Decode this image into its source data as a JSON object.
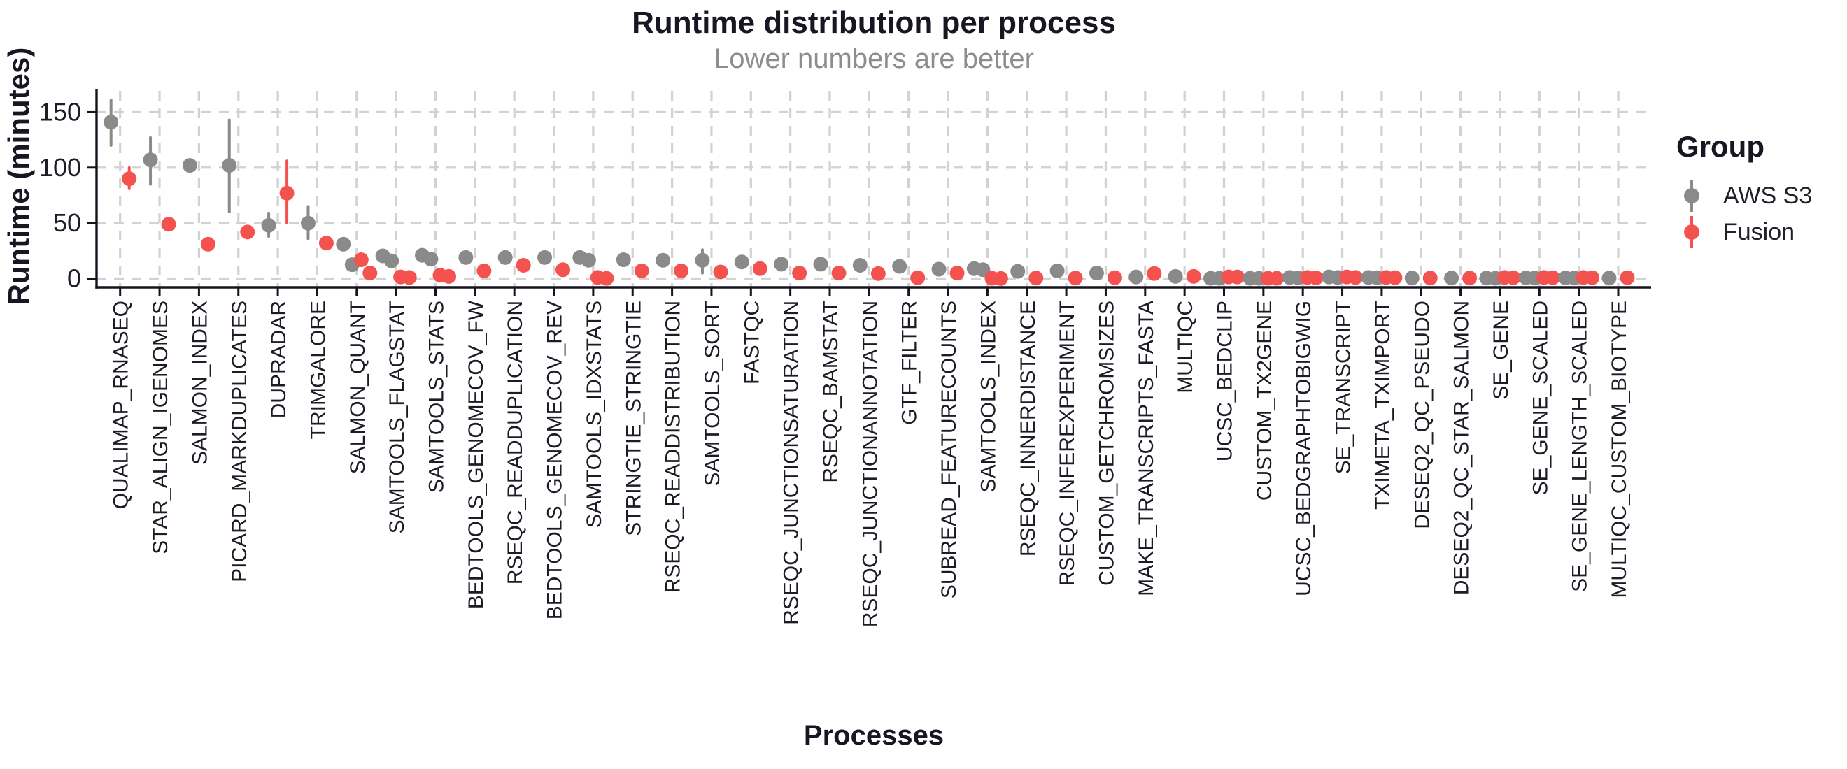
{
  "title": "Runtime distribution per process",
  "subtitle": "Lower numbers are better",
  "x_axis_label": "Processes",
  "y_axis_label": "Runtime (minutes)",
  "legend": {
    "title": "Group",
    "items": [
      {
        "label": "AWS S3",
        "color": "#8A8A8A"
      },
      {
        "label": "Fusion",
        "color": "#F4524F"
      }
    ]
  },
  "chart_data": {
    "type": "scatter",
    "subtype": "dodged pointrange, discrete x",
    "title": "Runtime distribution per process",
    "subtitle": "Lower numbers are better",
    "xlabel": "Processes",
    "ylabel": "Runtime (minutes)",
    "y_ticks": [
      0,
      50,
      100,
      150
    ],
    "ylim": [
      -8,
      170
    ],
    "grid": "dashed both axes",
    "legend_position": "right",
    "colors": {
      "s3": "#8A8A8A",
      "fusion": "#F4524F"
    },
    "series_names": [
      "AWS S3",
      "Fusion"
    ],
    "processes": [
      {
        "name": "QUALIMAP_RNASEQ",
        "s3": [
          141
        ],
        "s3_range": [
          120,
          161
        ],
        "fusion": [
          90
        ],
        "fusion_range": [
          81,
          100
        ]
      },
      {
        "name": "STAR_ALIGN_IGENOMES",
        "s3": [
          107
        ],
        "s3_range": [
          85,
          127
        ],
        "fusion": [
          49
        ],
        "fusion_range": null
      },
      {
        "name": "SALMON_INDEX",
        "s3": [
          102
        ],
        "s3_range": null,
        "fusion": [
          31
        ],
        "fusion_range": null
      },
      {
        "name": "PICARD_MARKDUPLICATES",
        "s3": [
          102
        ],
        "s3_range": [
          60,
          143
        ],
        "fusion": [
          42
        ],
        "fusion_range": null
      },
      {
        "name": "DUPRADAR",
        "s3": [
          48
        ],
        "s3_range": [
          38,
          59
        ],
        "fusion": [
          77
        ],
        "fusion_range": [
          50,
          106
        ]
      },
      {
        "name": "TRIMGALORE",
        "s3": [
          50
        ],
        "s3_range": [
          36,
          65
        ],
        "fusion": [
          32
        ],
        "fusion_range": null
      },
      {
        "name": "SALMON_QUANT",
        "s3": [
          31,
          12.5
        ],
        "s3_range": null,
        "fusion": [
          17,
          5
        ],
        "fusion_range": null
      },
      {
        "name": "SAMTOOLS_FLAGSTAT",
        "s3": [
          20.5,
          16
        ],
        "s3_range": null,
        "fusion": [
          1.5,
          1
        ],
        "fusion_range": null
      },
      {
        "name": "SAMTOOLS_STATS",
        "s3": [
          21,
          17.5
        ],
        "s3_range": null,
        "fusion": [
          3,
          2
        ],
        "fusion_range": null
      },
      {
        "name": "BEDTOOLS_GENOMECOV_FW",
        "s3": [
          19
        ],
        "s3_range": null,
        "fusion": [
          7
        ],
        "fusion_range": null
      },
      {
        "name": "RSEQC_READDUPLICATION",
        "s3": [
          19
        ],
        "s3_range": null,
        "fusion": [
          12
        ],
        "fusion_range": null
      },
      {
        "name": "BEDTOOLS_GENOMECOV_REV",
        "s3": [
          19
        ],
        "s3_range": null,
        "fusion": [
          8
        ],
        "fusion_range": null
      },
      {
        "name": "SAMTOOLS_IDXSTATS",
        "s3": [
          19,
          16.5
        ],
        "s3_range": null,
        "fusion": [
          1,
          0.2
        ],
        "fusion_range": null
      },
      {
        "name": "STRINGTIE_STRINGTIE",
        "s3": [
          17
        ],
        "s3_range": null,
        "fusion": [
          7
        ],
        "fusion_range": null
      },
      {
        "name": "RSEQC_READDISTRIBUTION",
        "s3": [
          16.5
        ],
        "s3_range": null,
        "fusion": [
          7
        ],
        "fusion_range": null
      },
      {
        "name": "SAMTOOLS_SORT",
        "s3": [
          16.5
        ],
        "s3_range": [
          5,
          26
        ],
        "fusion": [
          6
        ],
        "fusion_range": null
      },
      {
        "name": "FASTQC",
        "s3": [
          15
        ],
        "s3_range": null,
        "fusion": [
          9
        ],
        "fusion_range": null
      },
      {
        "name": "RSEQC_JUNCTIONSATURATION",
        "s3": [
          13
        ],
        "s3_range": null,
        "fusion": [
          5
        ],
        "fusion_range": null
      },
      {
        "name": "RSEQC_BAMSTAT",
        "s3": [
          13
        ],
        "s3_range": null,
        "fusion": [
          5
        ],
        "fusion_range": null
      },
      {
        "name": "RSEQC_JUNCTIONANNOTATION",
        "s3": [
          12
        ],
        "s3_range": null,
        "fusion": [
          4.5
        ],
        "fusion_range": null
      },
      {
        "name": "GTF_FILTER",
        "s3": [
          11
        ],
        "s3_range": null,
        "fusion": [
          0.8
        ],
        "fusion_range": null
      },
      {
        "name": "SUBREAD_FEATURECOUNTS",
        "s3": [
          8.5
        ],
        "s3_range": null,
        "fusion": [
          5
        ],
        "fusion_range": null
      },
      {
        "name": "SAMTOOLS_INDEX",
        "s3": [
          9,
          8
        ],
        "s3_range": null,
        "fusion": [
          0.3,
          0.1
        ],
        "fusion_range": null
      },
      {
        "name": "RSEQC_INNERDISTANCE",
        "s3": [
          6.5
        ],
        "s3_range": null,
        "fusion": [
          0.5
        ],
        "fusion_range": null
      },
      {
        "name": "RSEQC_INFEREXPERIMENT",
        "s3": [
          7
        ],
        "s3_range": null,
        "fusion": [
          0.5
        ],
        "fusion_range": null
      },
      {
        "name": "CUSTOM_GETCHROMSIZES",
        "s3": [
          5
        ],
        "s3_range": null,
        "fusion": [
          0.8
        ],
        "fusion_range": null
      },
      {
        "name": "MAKE_TRANSCRIPTS_FASTA",
        "s3": [
          1.5
        ],
        "s3_range": null,
        "fusion": [
          4.6
        ],
        "fusion_range": null
      },
      {
        "name": "MULTIQC",
        "s3": [
          2
        ],
        "s3_range": null,
        "fusion": [
          2
        ],
        "fusion_range": null
      },
      {
        "name": "UCSC_BEDCLIP",
        "s3": [
          0.3,
          0.3
        ],
        "s3_range": null,
        "fusion": [
          1.5,
          1.5
        ],
        "fusion_range": null
      },
      {
        "name": "CUSTOM_TX2GENE",
        "s3": [
          0.3,
          0.3
        ],
        "s3_range": null,
        "fusion": [
          0.3,
          0.3
        ],
        "fusion_range": null
      },
      {
        "name": "UCSC_BEDGRAPHTOBIGWIG",
        "s3": [
          1,
          0.7
        ],
        "s3_range": null,
        "fusion": [
          1,
          0.7
        ],
        "fusion_range": null
      },
      {
        "name": "SE_TRANSCRIPT",
        "s3": [
          1.5,
          1
        ],
        "s3_range": null,
        "fusion": [
          1.5,
          1
        ],
        "fusion_range": null
      },
      {
        "name": "TXIMETA_TXIMPORT",
        "s3": [
          1,
          0.8
        ],
        "s3_range": null,
        "fusion": [
          1,
          0.8
        ],
        "fusion_range": null
      },
      {
        "name": "DESEQ2_QC_PSEUDO",
        "s3": [
          0.5
        ],
        "s3_range": null,
        "fusion": [
          0.5
        ],
        "fusion_range": null
      },
      {
        "name": "DESEQ2_QC_STAR_SALMON",
        "s3": [
          0.5
        ],
        "s3_range": null,
        "fusion": [
          0.5
        ],
        "fusion_range": null
      },
      {
        "name": "SE_GENE",
        "s3": [
          0.5,
          0.3
        ],
        "s3_range": null,
        "fusion": [
          1,
          0.8
        ],
        "fusion_range": null
      },
      {
        "name": "SE_GENE_SCALED",
        "s3": [
          0.7,
          0.5
        ],
        "s3_range": null,
        "fusion": [
          1,
          0.8
        ],
        "fusion_range": null
      },
      {
        "name": "SE_GENE_LENGTH_SCALED",
        "s3": [
          0.7,
          0.5
        ],
        "s3_range": null,
        "fusion": [
          1,
          0.8
        ],
        "fusion_range": null
      },
      {
        "name": "MULTIQC_CUSTOM_BIOTYPE",
        "s3": [
          0.5
        ],
        "s3_range": null,
        "fusion": [
          0.8
        ],
        "fusion_range": null
      }
    ]
  }
}
